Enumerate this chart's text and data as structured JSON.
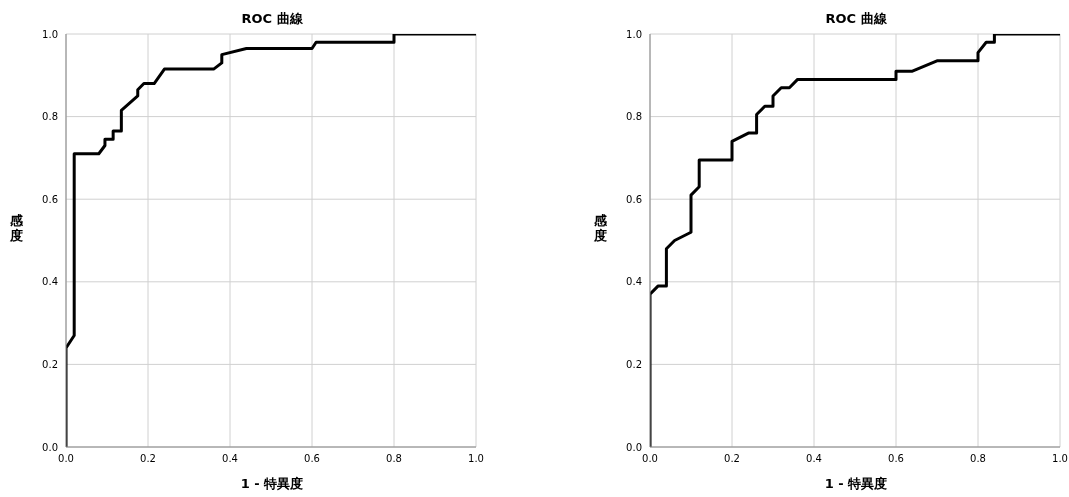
{
  "chart_data": [
    {
      "type": "line",
      "title": "ROC 曲線",
      "xlabel": "1 - 特異度",
      "ylabel": "感度",
      "xlim": [
        0,
        1
      ],
      "ylim": [
        0,
        1
      ],
      "xticks": [
        {
          "value": 0,
          "label": "0.0"
        },
        {
          "value": 0.2,
          "label": "0.2"
        },
        {
          "value": 0.4,
          "label": "0.4"
        },
        {
          "value": 0.6,
          "label": "0.6"
        },
        {
          "value": 0.8,
          "label": "0.8"
        },
        {
          "value": 1,
          "label": "1.0"
        }
      ],
      "yticks": [
        {
          "value": 0,
          "label": "0.0"
        },
        {
          "value": 0.2,
          "label": "0.2"
        },
        {
          "value": 0.4,
          "label": "0.4"
        },
        {
          "value": 0.6,
          "label": "0.6"
        },
        {
          "value": 0.8,
          "label": "0.8"
        },
        {
          "value": 1,
          "label": "1.0"
        }
      ],
      "grid": true,
      "marker": "none",
      "line_style": "solid",
      "series": [
        {
          "color": "#000000",
          "x": [
            0,
            0,
            0.02,
            0.02,
            0.08,
            0.095,
            0.095,
            0.115,
            0.115,
            0.135,
            0.135,
            0.175,
            0.175,
            0.19,
            0.215,
            0.24,
            0.36,
            0.38,
            0.38,
            0.44,
            0.6,
            0.61,
            0.8,
            0.8,
            1
          ],
          "values": [
            0,
            0.24,
            0.27,
            0.71,
            0.71,
            0.73,
            0.745,
            0.745,
            0.765,
            0.765,
            0.815,
            0.85,
            0.865,
            0.88,
            0.88,
            0.915,
            0.915,
            0.93,
            0.95,
            0.965,
            0.965,
            0.98,
            0.98,
            1,
            1
          ]
        }
      ]
    },
    {
      "type": "line",
      "title": "ROC 曲線",
      "xlabel": "1 - 特異度",
      "ylabel": "感度",
      "xlim": [
        0,
        1
      ],
      "ylim": [
        0,
        1
      ],
      "xticks": [
        {
          "value": 0,
          "label": "0.0"
        },
        {
          "value": 0.2,
          "label": "0.2"
        },
        {
          "value": 0.4,
          "label": "0.4"
        },
        {
          "value": 0.6,
          "label": "0.6"
        },
        {
          "value": 0.8,
          "label": "0.8"
        },
        {
          "value": 1,
          "label": "1.0"
        }
      ],
      "yticks": [
        {
          "value": 0,
          "label": "0.0"
        },
        {
          "value": 0.2,
          "label": "0.2"
        },
        {
          "value": 0.4,
          "label": "0.4"
        },
        {
          "value": 0.6,
          "label": "0.6"
        },
        {
          "value": 0.8,
          "label": "0.8"
        },
        {
          "value": 1,
          "label": "1.0"
        }
      ],
      "grid": true,
      "marker": "none",
      "line_style": "solid",
      "series": [
        {
          "color": "#000000",
          "x": [
            0,
            0,
            0.02,
            0.04,
            0.04,
            0.06,
            0.1,
            0.1,
            0.12,
            0.12,
            0.2,
            0.2,
            0.24,
            0.26,
            0.26,
            0.28,
            0.3,
            0.3,
            0.32,
            0.34,
            0.36,
            0.6,
            0.6,
            0.64,
            0.7,
            0.8,
            0.8,
            0.82,
            0.84,
            0.84,
            1
          ],
          "values": [
            0,
            0.37,
            0.39,
            0.39,
            0.48,
            0.5,
            0.52,
            0.61,
            0.63,
            0.695,
            0.695,
            0.74,
            0.76,
            0.76,
            0.805,
            0.825,
            0.825,
            0.85,
            0.87,
            0.87,
            0.89,
            0.89,
            0.91,
            0.91,
            0.935,
            0.935,
            0.955,
            0.98,
            0.98,
            1,
            1
          ]
        }
      ]
    }
  ]
}
